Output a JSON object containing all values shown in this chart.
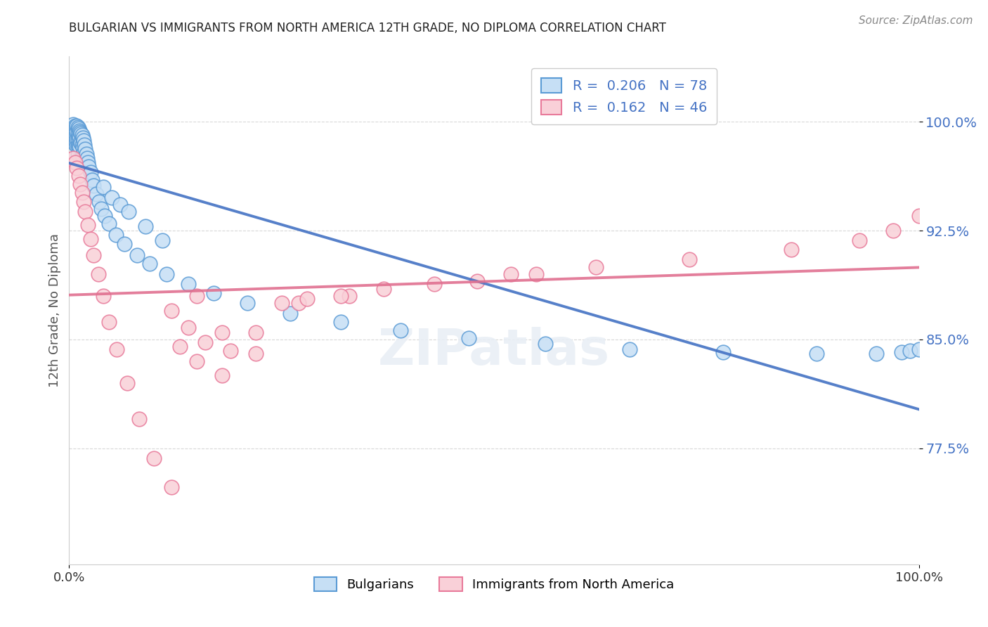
{
  "title": "BULGARIAN VS IMMIGRANTS FROM NORTH AMERICA 12TH GRADE, NO DIPLOMA CORRELATION CHART",
  "source": "Source: ZipAtlas.com",
  "ylabel": "12th Grade, No Diploma",
  "ytick_values": [
    0.775,
    0.85,
    0.925,
    1.0
  ],
  "ytick_labels": [
    "77.5%",
    "85.0%",
    "92.5%",
    "100.0%"
  ],
  "xlim": [
    0.0,
    1.0
  ],
  "ylim": [
    0.695,
    1.045
  ],
  "blue_R": "0.206",
  "blue_N": "78",
  "pink_R": "0.162",
  "pink_N": "46",
  "legend_label_blue": "Bulgarians",
  "legend_label_pink": "Immigrants from North America",
  "blue_face": "#c6dff5",
  "blue_edge": "#5b9bd5",
  "pink_face": "#f9d0d8",
  "pink_edge": "#e87a9a",
  "blue_line": "#4472c4",
  "pink_line": "#e07090",
  "grid_color": "#d8d8d8",
  "title_color": "#222222",
  "source_color": "#888888",
  "ylabel_color": "#555555",
  "ytick_color": "#4472c4",
  "bg_color": "#ffffff",
  "scatter_size": 220,
  "scatter_lw": 1.2,
  "blue_x": [
    0.004,
    0.005,
    0.005,
    0.006,
    0.006,
    0.006,
    0.007,
    0.007,
    0.007,
    0.008,
    0.008,
    0.008,
    0.009,
    0.009,
    0.009,
    0.009,
    0.01,
    0.01,
    0.01,
    0.01,
    0.01,
    0.011,
    0.011,
    0.011,
    0.012,
    0.012,
    0.012,
    0.013,
    0.013,
    0.014,
    0.014,
    0.015,
    0.015,
    0.015,
    0.016,
    0.016,
    0.017,
    0.017,
    0.018,
    0.019,
    0.02,
    0.021,
    0.022,
    0.023,
    0.025,
    0.027,
    0.029,
    0.032,
    0.035,
    0.038,
    0.042,
    0.047,
    0.055,
    0.065,
    0.08,
    0.095,
    0.115,
    0.14,
    0.17,
    0.21,
    0.26,
    0.32,
    0.39,
    0.47,
    0.56,
    0.66,
    0.77,
    0.88,
    0.95,
    0.98,
    0.99,
    1.0,
    0.04,
    0.05,
    0.06,
    0.07,
    0.09,
    0.11
  ],
  "blue_y": [
    0.995,
    0.998,
    0.992,
    0.996,
    0.99,
    0.985,
    0.997,
    0.993,
    0.988,
    0.996,
    0.991,
    0.986,
    0.997,
    0.993,
    0.988,
    0.983,
    0.996,
    0.992,
    0.988,
    0.983,
    0.978,
    0.995,
    0.99,
    0.984,
    0.994,
    0.989,
    0.983,
    0.993,
    0.986,
    0.992,
    0.985,
    0.991,
    0.984,
    0.977,
    0.989,
    0.982,
    0.987,
    0.979,
    0.984,
    0.981,
    0.978,
    0.975,
    0.972,
    0.969,
    0.965,
    0.96,
    0.956,
    0.95,
    0.945,
    0.94,
    0.935,
    0.93,
    0.922,
    0.916,
    0.908,
    0.902,
    0.895,
    0.888,
    0.882,
    0.875,
    0.868,
    0.862,
    0.856,
    0.851,
    0.847,
    0.843,
    0.841,
    0.84,
    0.84,
    0.841,
    0.842,
    0.843,
    0.955,
    0.948,
    0.943,
    0.938,
    0.928,
    0.918
  ],
  "pink_x": [
    0.005,
    0.007,
    0.009,
    0.011,
    0.013,
    0.015,
    0.017,
    0.019,
    0.022,
    0.025,
    0.029,
    0.034,
    0.04,
    0.047,
    0.056,
    0.068,
    0.082,
    0.1,
    0.12,
    0.15,
    0.18,
    0.22,
    0.27,
    0.15,
    0.18,
    0.13,
    0.25,
    0.33,
    0.43,
    0.55,
    0.12,
    0.14,
    0.16,
    0.32,
    0.37,
    0.28,
    0.22,
    0.19,
    0.48,
    0.52,
    0.62,
    0.73,
    0.85,
    0.93,
    0.97,
    1.0
  ],
  "pink_y": [
    0.975,
    0.972,
    0.968,
    0.963,
    0.957,
    0.951,
    0.945,
    0.938,
    0.929,
    0.919,
    0.908,
    0.895,
    0.88,
    0.862,
    0.843,
    0.82,
    0.795,
    0.768,
    0.748,
    0.88,
    0.855,
    0.84,
    0.875,
    0.835,
    0.825,
    0.845,
    0.875,
    0.88,
    0.888,
    0.895,
    0.87,
    0.858,
    0.848,
    0.88,
    0.885,
    0.878,
    0.855,
    0.842,
    0.89,
    0.895,
    0.9,
    0.905,
    0.912,
    0.918,
    0.925,
    0.935
  ]
}
